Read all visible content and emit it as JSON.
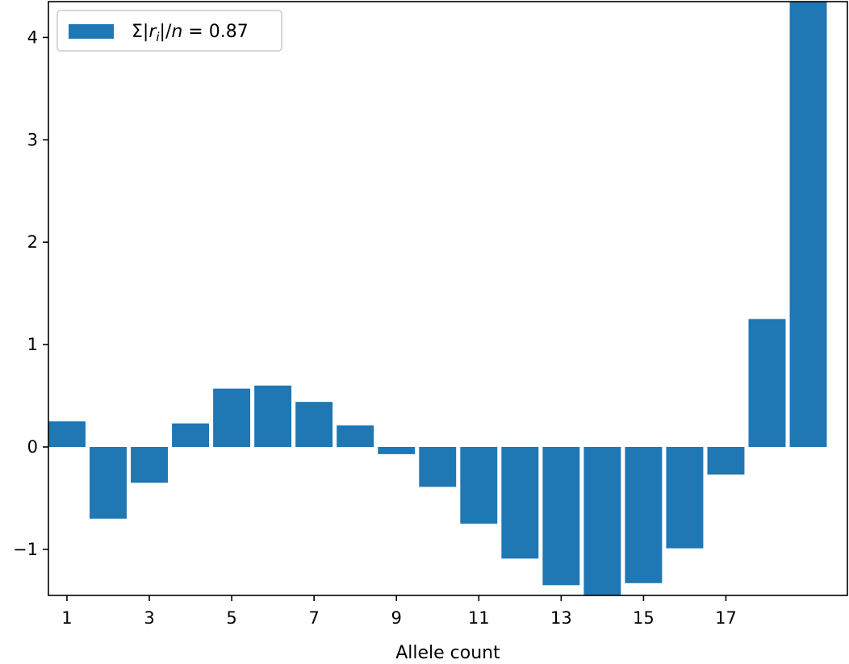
{
  "chart_data": {
    "type": "bar",
    "x": [
      1,
      2,
      3,
      4,
      5,
      6,
      7,
      8,
      9,
      10,
      11,
      12,
      13,
      14,
      15,
      16,
      17,
      18,
      19
    ],
    "values": [
      0.25,
      -0.7,
      -0.35,
      0.23,
      0.57,
      0.6,
      0.44,
      0.21,
      -0.07,
      -0.39,
      -0.75,
      -1.09,
      -1.35,
      -1.45,
      -1.33,
      -0.99,
      -0.27,
      1.25,
      4.35
    ],
    "xlabel": "Allele count",
    "ylabel": "",
    "title": "",
    "xlim": [
      0.55,
      19.95
    ],
    "ylim": [
      -1.45,
      4.35
    ],
    "x_ticks": [
      "1",
      "3",
      "5",
      "7",
      "9",
      "11",
      "13",
      "15",
      "17"
    ],
    "y_ticks": [
      "−1",
      "0",
      "1",
      "2",
      "3",
      "4"
    ],
    "legend": {
      "label": "Σ|rᵢ|/n = 0.87",
      "placement": "upper left"
    },
    "bar_color": "#1f77b4",
    "grid": false
  }
}
